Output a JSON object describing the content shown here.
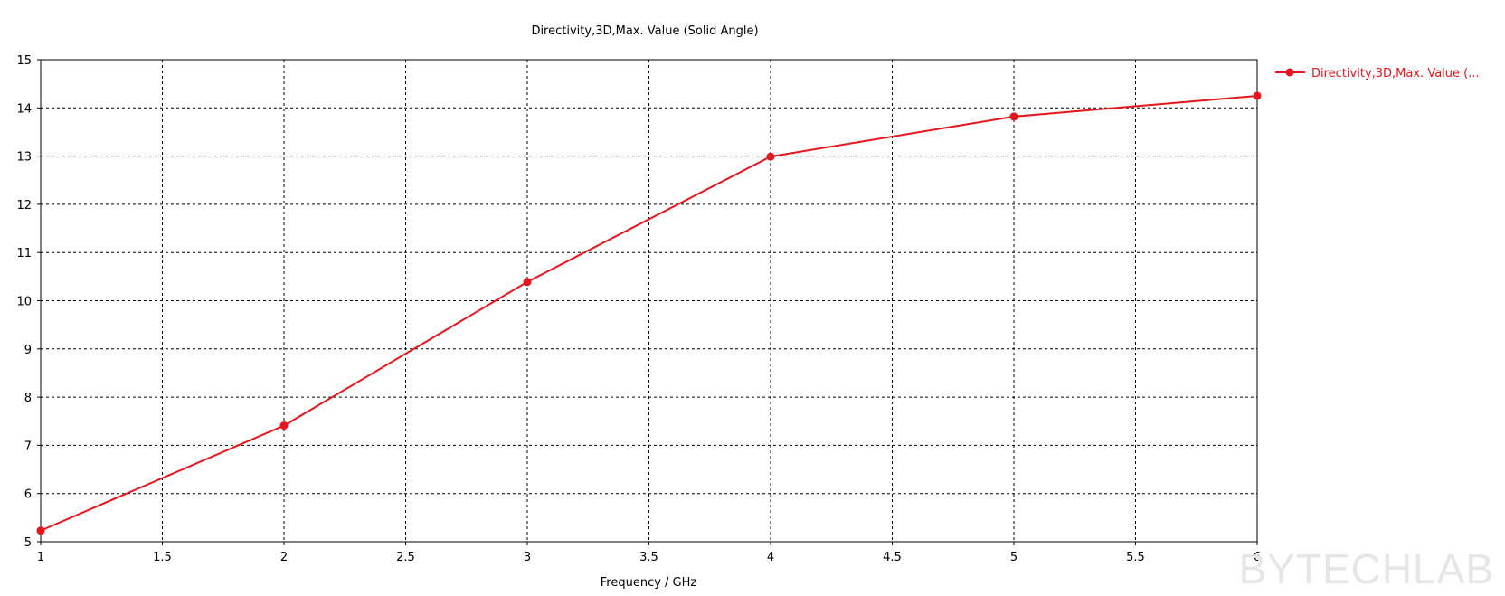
{
  "chart_data": {
    "type": "line",
    "title": "Directivity,3D,Max. Value (Solid Angle)",
    "xlabel": "Frequency / GHz",
    "ylabel": "",
    "xlim": [
      1,
      6
    ],
    "ylim": [
      5,
      15
    ],
    "xticks": [
      1,
      1.5,
      2,
      2.5,
      3,
      3.5,
      4,
      4.5,
      5,
      5.5,
      6
    ],
    "yticks": [
      5,
      6,
      7,
      8,
      9,
      10,
      11,
      12,
      13,
      14,
      15
    ],
    "grid": true,
    "legend_position": "right",
    "series": [
      {
        "name": "Directivity,3D,Max. Value (...",
        "color": "#e8141c",
        "x": [
          1,
          2,
          3,
          4,
          5,
          6
        ],
        "y": [
          5.23,
          7.41,
          10.39,
          12.99,
          13.82,
          14.25
        ]
      }
    ]
  },
  "watermark": "BYTECHLAB"
}
